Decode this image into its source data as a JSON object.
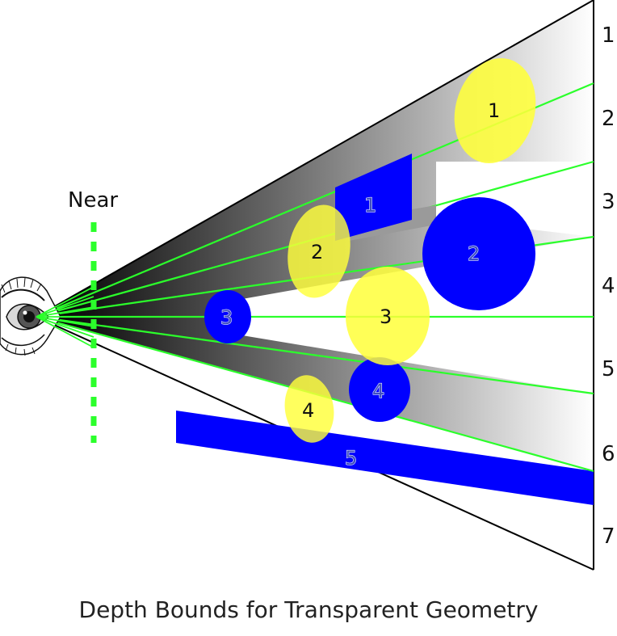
{
  "near_label": "Near",
  "slice_labels": [
    "1",
    "2",
    "3",
    "4",
    "5",
    "6",
    "7"
  ],
  "yellow_labels": [
    "1",
    "2",
    "3",
    "4"
  ],
  "blue_labels": [
    "1",
    "2",
    "3",
    "4",
    "5"
  ],
  "title": "Depth Bounds for Transparent Geometry",
  "colors": {
    "yellow": "#ffff3a",
    "blue": "#0000ff",
    "green": "#2bff2b",
    "frustum_dark": "#000000",
    "frustum_light": "#ffffff"
  },
  "icons": [
    "eye-icon"
  ]
}
